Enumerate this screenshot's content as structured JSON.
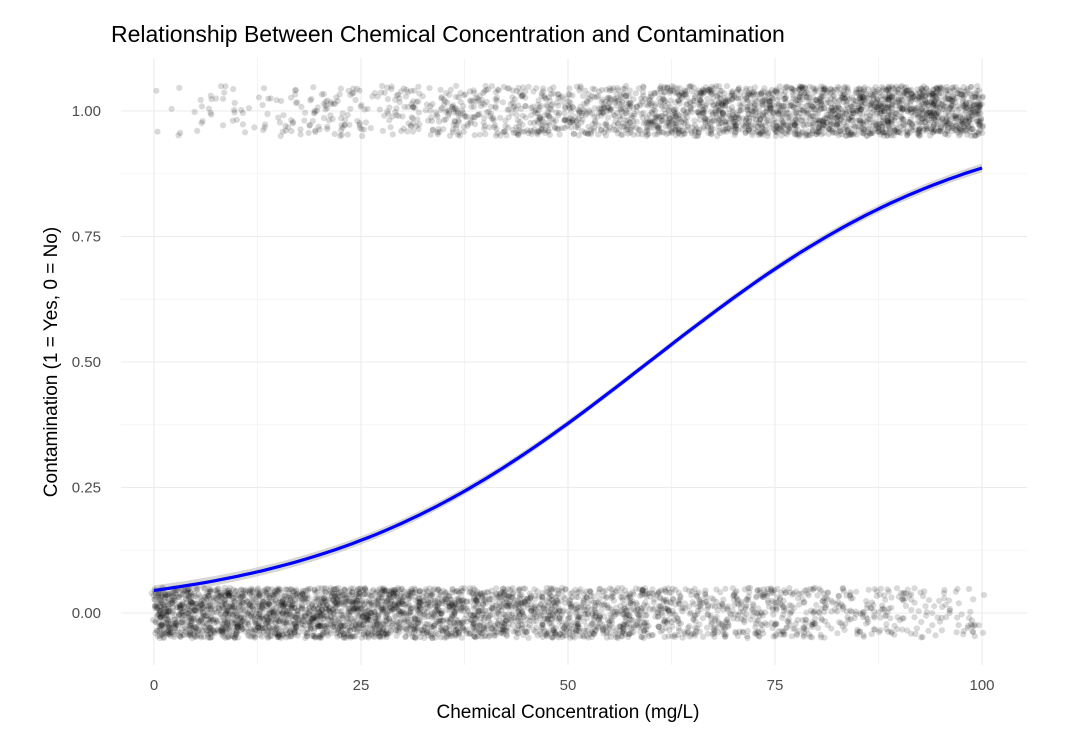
{
  "chart_data": {
    "type": "scatter",
    "title": "Relationship Between Chemical Concentration and Contamination",
    "xlabel": "Chemical Concentration (mg/L)",
    "ylabel": "Contamination (1 = Yes, 0 = No)",
    "xlim": [
      -4,
      105
    ],
    "ylim": [
      -0.11,
      1.11
    ],
    "x_ticks": [
      0,
      25,
      50,
      75,
      100
    ],
    "x_tick_labels": [
      "0",
      "25",
      "50",
      "75",
      "100"
    ],
    "y_ticks": [
      0,
      0.25,
      0.5,
      0.75,
      1
    ],
    "y_tick_labels": [
      "0.00",
      "0.25",
      "0.50",
      "0.75",
      "1.00"
    ],
    "grid": true,
    "series": [
      {
        "name": "Observations (jittered)",
        "kind": "points",
        "x_range": [
          0,
          100
        ],
        "y_values": [
          0,
          1
        ],
        "jitter_height": 0.05,
        "point_alpha": 0.15,
        "point_color": "#000000"
      },
      {
        "name": "Logistic regression fit",
        "kind": "line",
        "color": "#0000ff",
        "band_color": "#999999",
        "x": [
          0,
          12.5,
          25,
          37.5,
          50,
          62.5,
          75,
          87.5,
          100
        ],
        "y": [
          0.045,
          0.08,
          0.145,
          0.245,
          0.38,
          0.545,
          0.69,
          0.805,
          0.888
        ]
      }
    ]
  }
}
